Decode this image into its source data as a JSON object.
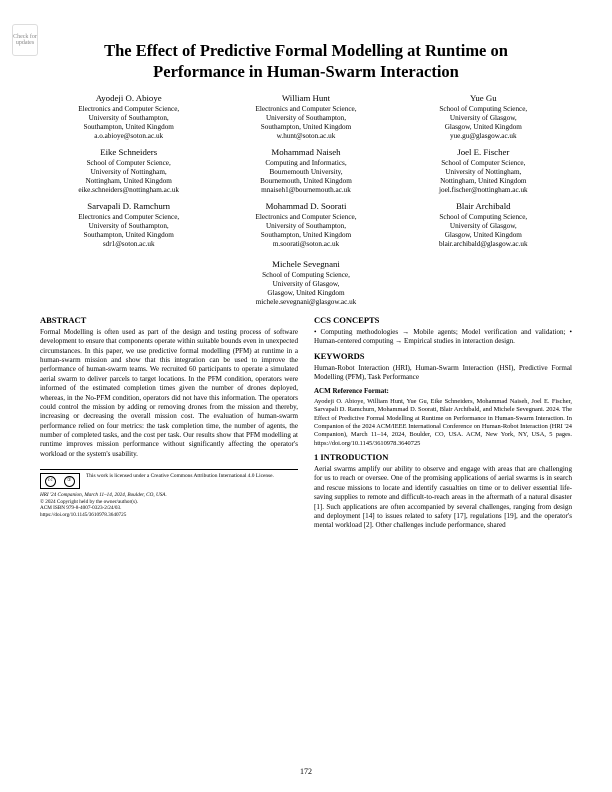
{
  "badge": "Check for updates",
  "title_l1": "The Effect of Predictive Formal Modelling at Runtime on",
  "title_l2": "Performance in Human-Swarm Interaction",
  "authors": [
    {
      "name": "Ayodeji O. Abioye",
      "aff1": "Electronics and Computer Science,",
      "aff2": "University of Southampton,",
      "aff3": "Southampton, United Kingdom",
      "email": "a.o.abioye@soton.ac.uk"
    },
    {
      "name": "William Hunt",
      "aff1": "Electronics and Computer Science,",
      "aff2": "University of Southampton,",
      "aff3": "Southampton, United Kingdom",
      "email": "w.hunt@soton.ac.uk"
    },
    {
      "name": "Yue Gu",
      "aff1": "School of Computing Science,",
      "aff2": "University of Glasgow,",
      "aff3": "Glasgow, United Kingdom",
      "email": "yue.gu@glasgow.ac.uk"
    },
    {
      "name": "Eike Schneiders",
      "aff1": "School of Computer Science,",
      "aff2": "University of Nottingham,",
      "aff3": "Nottingham, United Kingdom",
      "email": "eike.schneiders@nottingham.ac.uk"
    },
    {
      "name": "Mohammad Naiseh",
      "aff1": "Computing and Informatics,",
      "aff2": "Bournemouth University,",
      "aff3": "Bournemouth, United Kingdom",
      "email": "mnaiseh1@bournemouth.ac.uk"
    },
    {
      "name": "Joel E. Fischer",
      "aff1": "School of Computer Science,",
      "aff2": "University of Nottingham,",
      "aff3": "Nottingham, United Kingdom",
      "email": "joel.fischer@nottingham.ac.uk"
    },
    {
      "name": "Sarvapali D. Ramchurn",
      "aff1": "Electronics and Computer Science,",
      "aff2": "University of Southampton,",
      "aff3": "Southampton, United Kingdom",
      "email": "sdr1@soton.ac.uk"
    },
    {
      "name": "Mohammad D. Soorati",
      "aff1": "Electronics and Computer Science,",
      "aff2": "University of Southampton,",
      "aff3": "Southampton, United Kingdom",
      "email": "m.soorati@soton.ac.uk"
    },
    {
      "name": "Blair Archibald",
      "aff1": "School of Computing Science,",
      "aff2": "University of Glasgow,",
      "aff3": "Glasgow, United Kingdom",
      "email": "blair.archibald@glasgow.ac.uk"
    }
  ],
  "author_solo": {
    "name": "Michele Sevegnani",
    "aff1": "School of Computing Science,",
    "aff2": "University of Glasgow,",
    "aff3": "Glasgow, United Kingdom",
    "email": "michele.sevegnani@glasgow.ac.uk"
  },
  "headings": {
    "abstract": "ABSTRACT",
    "ccs": "CCS CONCEPTS",
    "keywords": "KEYWORDS",
    "refformat": "ACM Reference Format:",
    "intro": "1   INTRODUCTION"
  },
  "abstract": "Formal Modelling is often used as part of the design and testing process of software development to ensure that components operate within suitable bounds even in unexpected circumstances. In this paper, we use predictive formal modelling (PFM) at runtime in a human-swarm mission and show that this integration can be used to improve the performance of human-swarm teams. We recruited 60 participants to operate a simulated aerial swarm to deliver parcels to target locations. In the PFM condition, operators were informed of the estimated completion times given the number of drones deployed, whereas, in the No-PFM condition, operators did not have this information. The operators could control the mission by adding or removing drones from the mission and thereby, increasing or decreasing the overall mission cost. The evaluation of human-swarm performance relied on four metrics: the task completion time, the number of agents, the number of completed tasks, and the cost per task. Our results show that PFM modelling at runtime improves mission performance without significantly affecting the operator's workload or the system's usability.",
  "ccs": "• Computing methodologies → Mobile agents; Model verification and validation; • Human-centered computing → Empirical studies in interaction design.",
  "keywords": "Human-Robot Interaction (HRI), Human-Swarm Interaction (HSI), Predictive Formal Modelling (PFM), Task Performance",
  "refformat": "Ayodeji O. Abioye, William Hunt, Yue Gu, Eike Schneiders, Mohammad Naiseh, Joel E. Fischer, Sarvapali D. Ramchurn, Mohammad D. Soorati, Blair Archibald, and Michele Sevegnani. 2024. The Effect of Predictive Formal Modelling at Runtime on Performance in Human-Swarm Interaction. In Companion of the 2024 ACM/IEEE International Conference on Human-Robot Interaction (HRI '24 Companion), March 11–14, 2024, Boulder, CO, USA. ACM, New York, NY, USA, 5 pages. https://doi.org/10.1145/3610978.3640725",
  "intro": "Aerial swarms amplify our ability to observe and engage with areas that are challenging for us to reach or oversee. One of the promising applications of aerial swarms is in search and rescue missions to locate and identify casualties on time or to deliver essential life-saving supplies to remote and difficult-to-reach areas in the aftermath of a natural disaster [1]. Such applications are often accompanied by several challenges, ranging from design and deployment [14] to issues related to safety [17], regulations [19], and the operator's mental workload [2]. Other challenges include performance, shared",
  "cc_text": "This work is licensed under a Creative Commons Attribution International 4.0 License.",
  "footer": {
    "l1": "HRI '24 Companion, March 11–14, 2024, Boulder, CO, USA.",
    "l2": "© 2024 Copyright held by the owner/author(s).",
    "l3": "ACM ISBN 979-8-4007-0323-2/24/03.",
    "l4": "https://doi.org/10.1145/3610978.3640725"
  },
  "page_number": "172"
}
